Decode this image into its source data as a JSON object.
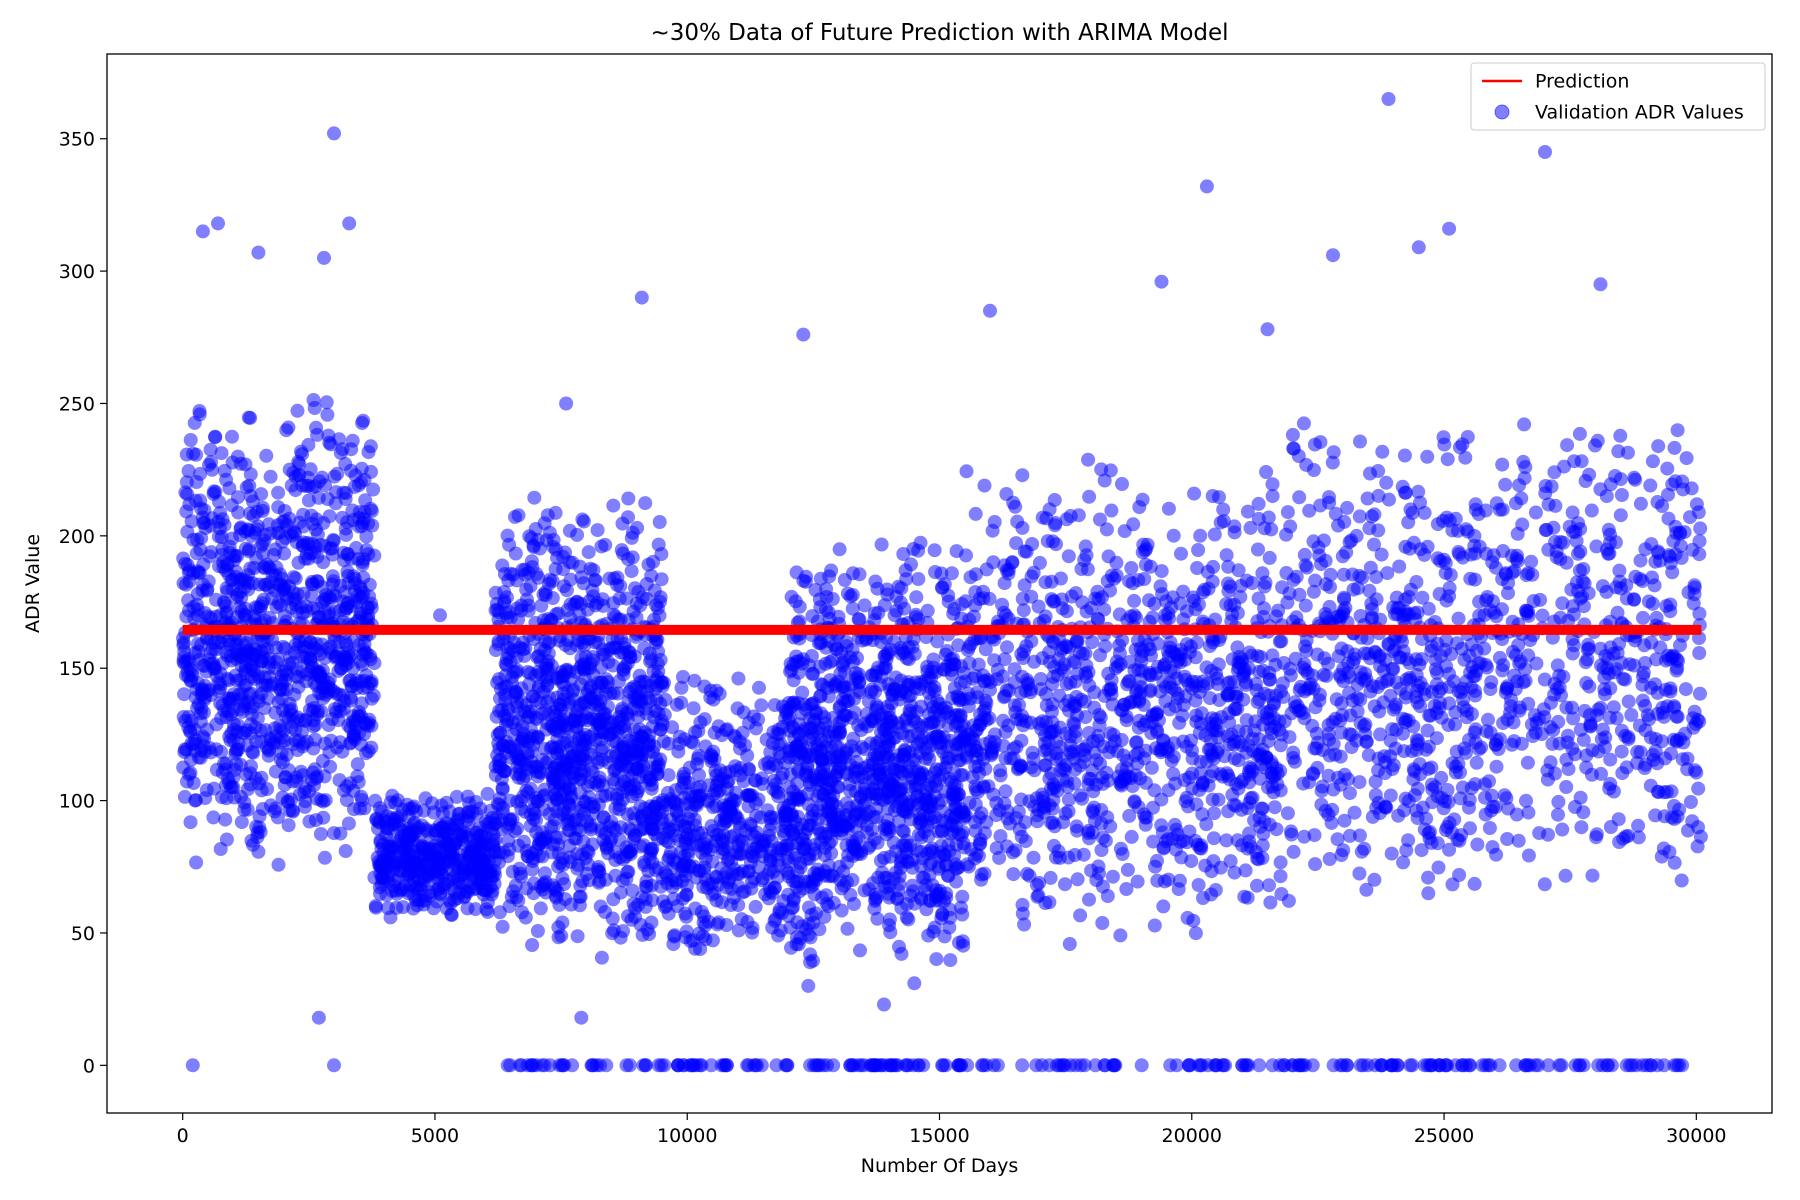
{
  "chart_data": {
    "type": "scatter",
    "title": "~30% Data of Future Prediction with ARIMA Model",
    "xlabel": "Number Of Days",
    "ylabel": "ADR Value",
    "xlim": [
      -1500,
      31500
    ],
    "ylim": [
      -18,
      382
    ],
    "xticks": [
      0,
      5000,
      10000,
      15000,
      20000,
      25000,
      30000
    ],
    "yticks": [
      0,
      50,
      100,
      150,
      200,
      250,
      300,
      350
    ],
    "grid": false,
    "legend_position": "top-right",
    "legend": [
      {
        "label": "Prediction",
        "type": "line",
        "color": "#ff0000"
      },
      {
        "label": "Validation ADR Values",
        "type": "scatter",
        "color": "#0000ff"
      }
    ],
    "series": [
      {
        "name": "Prediction",
        "type": "line",
        "color": "#ff0000",
        "x": [
          0,
          30100
        ],
        "y": [
          164.5,
          164.5
        ]
      },
      {
        "name": "Validation ADR Values",
        "type": "scatter",
        "color": "#0000ff",
        "alpha": 0.5,
        "segments": [
          {
            "x": [
              0,
              3800
            ],
            "y_range": [
              75,
              255
            ],
            "density": "high"
          },
          {
            "x": [
              3800,
              6200
            ],
            "y_range": [
              55,
              105
            ],
            "density": "medium"
          },
          {
            "x": [
              6200,
              9500
            ],
            "y_range": [
              40,
              220
            ],
            "density": "high"
          },
          {
            "x": [
              9500,
              12000
            ],
            "y_range": [
              40,
              150
            ],
            "density": "medium"
          },
          {
            "x": [
              12000,
              15500
            ],
            "y_range": [
              35,
              200
            ],
            "density": "high"
          },
          {
            "x": [
              15500,
              21800
            ],
            "y_range": [
              45,
              230
            ],
            "density": "high"
          },
          {
            "x": [
              21800,
              30100
            ],
            "y_range": [
              60,
              250
            ],
            "density": "high"
          }
        ],
        "notable_points": [
          {
            "x": 3000,
            "y": 352
          },
          {
            "x": 700,
            "y": 318
          },
          {
            "x": 3300,
            "y": 318
          },
          {
            "x": 400,
            "y": 315
          },
          {
            "x": 1500,
            "y": 307
          },
          {
            "x": 2800,
            "y": 305
          },
          {
            "x": 9100,
            "y": 290
          },
          {
            "x": 16000,
            "y": 285
          },
          {
            "x": 20300,
            "y": 332
          },
          {
            "x": 23900,
            "y": 365
          },
          {
            "x": 27000,
            "y": 345
          },
          {
            "x": 25100,
            "y": 316
          },
          {
            "x": 24500,
            "y": 309
          },
          {
            "x": 22800,
            "y": 306
          },
          {
            "x": 28100,
            "y": 295
          },
          {
            "x": 19400,
            "y": 296
          },
          {
            "x": 12300,
            "y": 276
          },
          {
            "x": 21500,
            "y": 278
          },
          {
            "x": 5100,
            "y": 170
          },
          {
            "x": 7600,
            "y": 250
          },
          {
            "x": 7900,
            "y": 18
          },
          {
            "x": 13900,
            "y": 23
          },
          {
            "x": 14500,
            "y": 31
          },
          {
            "x": 12400,
            "y": 30
          },
          {
            "x": 200,
            "y": 0
          },
          {
            "x": 3000,
            "y": 0
          },
          {
            "x": 2700,
            "y": 18
          }
        ],
        "zero_band_x": [
          6300,
          30100
        ]
      }
    ]
  }
}
